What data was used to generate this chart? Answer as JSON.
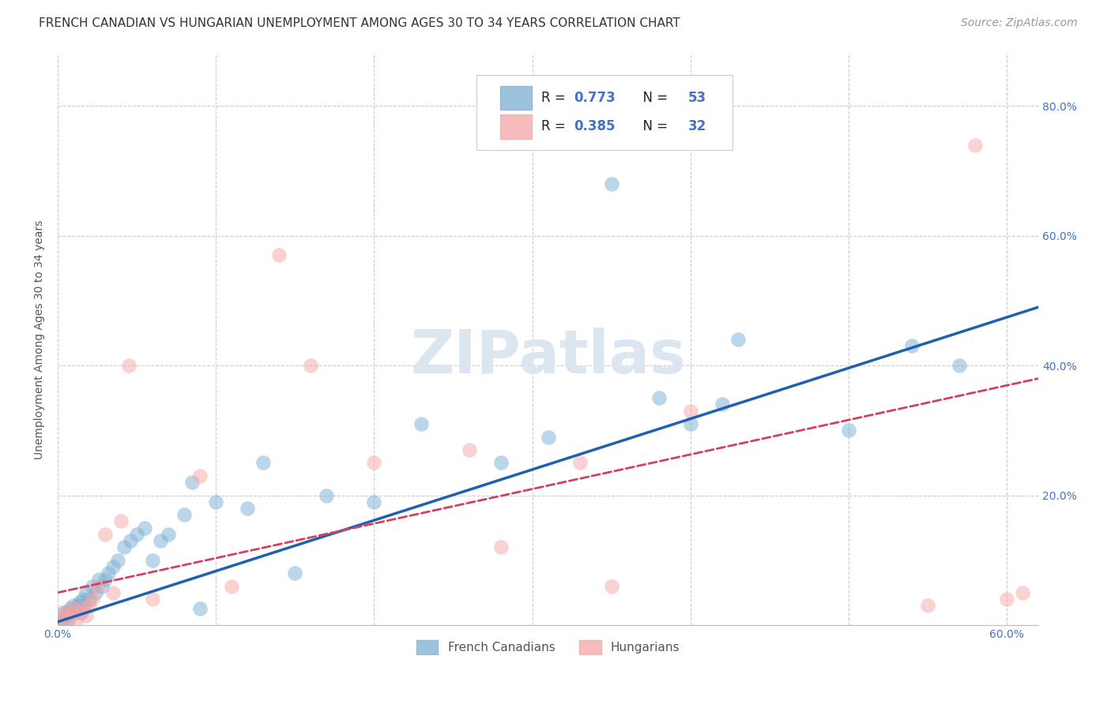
{
  "title": "FRENCH CANADIAN VS HUNGARIAN UNEMPLOYMENT AMONG AGES 30 TO 34 YEARS CORRELATION CHART",
  "source": "Source: ZipAtlas.com",
  "ylabel": "Unemployment Among Ages 30 to 34 years",
  "xlim": [
    0.0,
    0.62
  ],
  "ylim": [
    0.0,
    0.88
  ],
  "xticks": [
    0.0,
    0.1,
    0.2,
    0.3,
    0.4,
    0.5,
    0.6
  ],
  "xticklabels": [
    "0.0%",
    "",
    "",
    "",
    "",
    "",
    "60.0%"
  ],
  "yticks": [
    0.0,
    0.2,
    0.4,
    0.6,
    0.8
  ],
  "yticklabels_right": [
    "",
    "20.0%",
    "40.0%",
    "60.0%",
    "80.0%"
  ],
  "fc_color": "#7bafd4",
  "hu_color": "#f4a6a6",
  "fc_R": 0.773,
  "fc_N": 53,
  "hu_R": 0.385,
  "hu_N": 32,
  "watermark": "ZIPatlas",
  "french_canadians_x": [
    0.002,
    0.003,
    0.004,
    0.005,
    0.006,
    0.007,
    0.008,
    0.009,
    0.01,
    0.011,
    0.012,
    0.013,
    0.014,
    0.015,
    0.016,
    0.017,
    0.018,
    0.02,
    0.022,
    0.024,
    0.026,
    0.028,
    0.03,
    0.032,
    0.035,
    0.038,
    0.042,
    0.046,
    0.05,
    0.055,
    0.06,
    0.065,
    0.07,
    0.08,
    0.085,
    0.09,
    0.1,
    0.12,
    0.13,
    0.15,
    0.17,
    0.2,
    0.23,
    0.28,
    0.31,
    0.35,
    0.38,
    0.4,
    0.42,
    0.43,
    0.5,
    0.54,
    0.57
  ],
  "french_canadians_y": [
    0.01,
    0.02,
    0.01,
    0.015,
    0.02,
    0.01,
    0.025,
    0.02,
    0.03,
    0.02,
    0.025,
    0.03,
    0.035,
    0.02,
    0.04,
    0.03,
    0.05,
    0.04,
    0.06,
    0.05,
    0.07,
    0.06,
    0.07,
    0.08,
    0.09,
    0.1,
    0.12,
    0.13,
    0.14,
    0.15,
    0.1,
    0.13,
    0.14,
    0.17,
    0.22,
    0.025,
    0.19,
    0.18,
    0.25,
    0.08,
    0.2,
    0.19,
    0.31,
    0.25,
    0.29,
    0.68,
    0.35,
    0.31,
    0.34,
    0.44,
    0.3,
    0.43,
    0.4
  ],
  "hungarians_x": [
    0.002,
    0.004,
    0.005,
    0.007,
    0.009,
    0.01,
    0.012,
    0.014,
    0.016,
    0.018,
    0.02,
    0.022,
    0.025,
    0.03,
    0.035,
    0.04,
    0.045,
    0.06,
    0.09,
    0.11,
    0.14,
    0.16,
    0.2,
    0.26,
    0.28,
    0.33,
    0.35,
    0.4,
    0.55,
    0.58,
    0.6,
    0.61
  ],
  "hungarians_y": [
    0.01,
    0.015,
    0.02,
    0.01,
    0.02,
    0.025,
    0.01,
    0.02,
    0.025,
    0.015,
    0.03,
    0.04,
    0.06,
    0.14,
    0.05,
    0.16,
    0.4,
    0.04,
    0.23,
    0.06,
    0.57,
    0.4,
    0.25,
    0.27,
    0.12,
    0.25,
    0.06,
    0.33,
    0.03,
    0.74,
    0.04,
    0.05
  ],
  "fc_line_x": [
    0.0,
    0.62
  ],
  "fc_line_y": [
    0.005,
    0.49
  ],
  "hu_line_x": [
    0.0,
    0.62
  ],
  "hu_line_y": [
    0.05,
    0.38
  ],
  "background_color": "#ffffff",
  "grid_color": "#cccccc",
  "title_fontsize": 11,
  "axis_label_fontsize": 10,
  "tick_fontsize": 10,
  "legend_fontsize": 12,
  "watermark_fontsize": 55,
  "watermark_color": "#dce6f1",
  "source_fontsize": 10,
  "scatter_size": 180,
  "scatter_alpha": 0.5
}
